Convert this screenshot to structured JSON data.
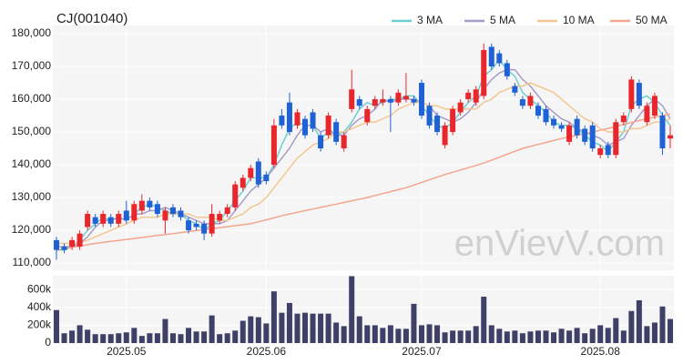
{
  "chart_data": {
    "type": "candlestick",
    "title": "CJ(001040)",
    "watermark": "enVievV.com",
    "categories": [
      null,
      null,
      null,
      null,
      null,
      null,
      null,
      null,
      null,
      "2025.05",
      null,
      null,
      null,
      null,
      null,
      null,
      null,
      null,
      null,
      null,
      null,
      null,
      null,
      null,
      null,
      null,
      null,
      "2025.06",
      null,
      null,
      null,
      null,
      null,
      null,
      null,
      null,
      null,
      null,
      null,
      null,
      null,
      null,
      null,
      null,
      null,
      null,
      null,
      "2025.07",
      null,
      null,
      null,
      null,
      null,
      null,
      null,
      null,
      null,
      null,
      null,
      null,
      null,
      null,
      null,
      null,
      null,
      null,
      null,
      null,
      null,
      null,
      "2025.08",
      null,
      null,
      null,
      null,
      null,
      null,
      null,
      null,
      null
    ],
    "open": [
      117000,
      115000,
      115000,
      115000,
      121000,
      124000,
      122000,
      124000,
      122000,
      126000,
      123000,
      126000,
      129000,
      128000,
      123000,
      127000,
      126000,
      123000,
      122000,
      122000,
      119000,
      123000,
      125000,
      127000,
      133000,
      136000,
      141000,
      137000,
      140000,
      155000,
      159000,
      152000,
      154000,
      156000,
      149000,
      149000,
      153000,
      145000,
      157000,
      160000,
      153000,
      158000,
      159000,
      160000,
      159000,
      160000,
      160000,
      165000,
      158000,
      155000,
      146000,
      150000,
      156000,
      160000,
      159000,
      161000,
      176000,
      174000,
      171000,
      164000,
      160000,
      158000,
      158000,
      157000,
      154000,
      152000,
      147000,
      154000,
      151000,
      152000,
      143000,
      146000,
      143000,
      153000,
      157000,
      165000,
      153000,
      155000,
      155000,
      148000
    ],
    "high": [
      118000,
      116000,
      118000,
      120000,
      126000,
      125000,
      126000,
      125000,
      126000,
      129000,
      129000,
      131000,
      130000,
      129000,
      127000,
      128000,
      127000,
      124000,
      123000,
      123000,
      128000,
      126000,
      128000,
      135000,
      137000,
      140000,
      142000,
      138000,
      154000,
      157000,
      162000,
      157000,
      155000,
      157000,
      150000,
      156000,
      154000,
      150000,
      169000,
      161000,
      158000,
      161000,
      163000,
      161000,
      163000,
      168000,
      161000,
      166000,
      159000,
      156000,
      153000,
      158000,
      160000,
      163000,
      164000,
      177000,
      177000,
      175000,
      172000,
      165000,
      161000,
      162000,
      159000,
      158000,
      155000,
      153000,
      153000,
      155000,
      152000,
      153000,
      146000,
      147000,
      154000,
      156000,
      167000,
      166000,
      159000,
      162000,
      156000,
      152000
    ],
    "low": [
      111000,
      113000,
      114000,
      114000,
      120000,
      121000,
      121000,
      121000,
      121000,
      122000,
      122000,
      125000,
      126000,
      124000,
      119000,
      124000,
      123000,
      119000,
      120000,
      117000,
      118000,
      122000,
      124000,
      126000,
      132000,
      135000,
      133000,
      134000,
      139000,
      151000,
      149000,
      151000,
      148000,
      150000,
      144000,
      148000,
      146000,
      144000,
      156000,
      157000,
      152000,
      157000,
      158000,
      150000,
      158000,
      159000,
      158000,
      154000,
      151000,
      149000,
      145000,
      149000,
      155000,
      159000,
      158000,
      160000,
      169000,
      170000,
      166000,
      161000,
      157000,
      157000,
      154000,
      152000,
      151000,
      150000,
      146000,
      148000,
      146000,
      144000,
      142000,
      142000,
      142000,
      152000,
      156000,
      157000,
      152000,
      154000,
      143000,
      145000
    ],
    "close": [
      114000,
      114000,
      117000,
      119000,
      125000,
      122000,
      125000,
      122000,
      125000,
      123000,
      128000,
      129000,
      127000,
      125000,
      126000,
      125000,
      124000,
      120000,
      121000,
      119000,
      125000,
      125000,
      127000,
      134000,
      136000,
      139000,
      134000,
      135000,
      152000,
      152000,
      150000,
      156000,
      149000,
      151000,
      145000,
      155000,
      147000,
      149000,
      163000,
      158000,
      157000,
      160000,
      160000,
      159000,
      162000,
      161000,
      159000,
      155000,
      152000,
      150000,
      152000,
      157000,
      159000,
      162000,
      163000,
      175000,
      170000,
      171000,
      167000,
      162000,
      158000,
      161000,
      155000,
      153000,
      152000,
      151000,
      152000,
      149000,
      147000,
      145000,
      145000,
      143000,
      153000,
      155000,
      166000,
      158000,
      158000,
      161000,
      145000,
      149000
    ],
    "up_color": "#e8262b",
    "down_color": "#1f62d6",
    "ylim": [
      107800,
      182500
    ],
    "yticks": [
      {
        "value": 110000,
        "label": "110,000"
      },
      {
        "value": 120000,
        "label": "120,000"
      },
      {
        "value": 130000,
        "label": "130,000"
      },
      {
        "value": 140000,
        "label": "140,000"
      },
      {
        "value": 150000,
        "label": "150,000"
      },
      {
        "value": 160000,
        "label": "160,000"
      },
      {
        "value": 170000,
        "label": "170,000"
      },
      {
        "value": 180000,
        "label": "180,000"
      }
    ],
    "grid": true,
    "legend": "top-right",
    "series": [
      {
        "name": "3 MA",
        "color": "#6ccfd0",
        "values": [
          114000,
          114000,
          115000,
          117000,
          120000,
          122000,
          124000,
          123000,
          124000,
          123000,
          125000,
          127000,
          128000,
          127000,
          126000,
          125000,
          125000,
          123000,
          122000,
          120000,
          122000,
          123000,
          126000,
          129000,
          132000,
          136000,
          136000,
          136000,
          140000,
          146000,
          151000,
          153000,
          152000,
          152000,
          148000,
          150000,
          149000,
          150000,
          153000,
          157000,
          159000,
          158000,
          159000,
          160000,
          160000,
          161000,
          161000,
          158000,
          155000,
          152000,
          151000,
          153000,
          156000,
          159000,
          161000,
          167000,
          169000,
          172000,
          169000,
          167000,
          162000,
          160000,
          158000,
          156000,
          153000,
          152000,
          152000,
          151000,
          149000,
          147000,
          146000,
          144000,
          147000,
          150000,
          158000,
          160000,
          161000,
          159000,
          155000,
          152000
        ]
      },
      {
        "name": "5 MA",
        "color": "#a89cc8",
        "values": [
          115000,
          115000,
          115000,
          116000,
          118000,
          121000,
          123000,
          123000,
          124000,
          123000,
          125000,
          125000,
          126000,
          126000,
          127000,
          126000,
          125000,
          124000,
          123000,
          122000,
          122000,
          122000,
          123000,
          126000,
          129000,
          132000,
          134000,
          136000,
          139000,
          142000,
          145000,
          149000,
          152000,
          152000,
          150000,
          151000,
          149000,
          149000,
          152000,
          154000,
          155000,
          157000,
          160000,
          159000,
          160000,
          160000,
          160000,
          159000,
          158000,
          155000,
          154000,
          153000,
          154000,
          156000,
          159000,
          163000,
          166000,
          168000,
          169000,
          169000,
          166000,
          164000,
          161000,
          158000,
          156000,
          154000,
          153000,
          151000,
          150000,
          149000,
          148000,
          146000,
          147000,
          148000,
          152000,
          155000,
          158000,
          160000,
          158000,
          154000
        ]
      },
      {
        "name": "10 MA",
        "color": "#f3c792",
        "values": [
          116000,
          116000,
          116000,
          116000,
          117000,
          118000,
          119000,
          120000,
          121000,
          122000,
          123000,
          124000,
          124000,
          124000,
          125000,
          125000,
          125000,
          125000,
          124000,
          124000,
          124000,
          123000,
          123000,
          124000,
          125000,
          127000,
          128000,
          130000,
          133000,
          136000,
          139000,
          142000,
          144000,
          146000,
          147000,
          148000,
          150000,
          150000,
          151000,
          152000,
          153000,
          153000,
          154000,
          155000,
          157000,
          158000,
          159000,
          159000,
          158000,
          158000,
          157000,
          157000,
          157000,
          157000,
          157000,
          159000,
          160000,
          162000,
          163000,
          164000,
          164000,
          165000,
          164000,
          163000,
          162000,
          160000,
          158000,
          156000,
          154000,
          153000,
          151000,
          150000,
          150000,
          150000,
          151000,
          151000,
          152000,
          153000,
          153000,
          154000
        ]
      },
      {
        "name": "50 MA",
        "color": "#f4a58f",
        "values": [
          114000,
          114400,
          114800,
          115200,
          115600,
          116000,
          116300,
          116600,
          116900,
          117200,
          117500,
          117800,
          118100,
          118400,
          118700,
          119000,
          119300,
          119600,
          119900,
          120200,
          120500,
          120800,
          121100,
          121400,
          121700,
          122000,
          122600,
          123200,
          123800,
          124400,
          125000,
          125500,
          126000,
          126500,
          127000,
          127500,
          128000,
          128500,
          129000,
          129500,
          130000,
          130600,
          131200,
          131800,
          132400,
          133000,
          133800,
          134600,
          135400,
          136200,
          137000,
          137700,
          138400,
          139100,
          139800,
          140500,
          141400,
          142300,
          143200,
          144100,
          145000,
          145600,
          146200,
          146800,
          147400,
          148000,
          148500,
          149000,
          149500,
          150000,
          150500,
          151100,
          151700,
          152300,
          152900,
          153500,
          154000,
          154500,
          155000,
          155500
        ]
      }
    ],
    "volume": {
      "color": "#3e4068",
      "values": [
        370000,
        110000,
        140000,
        200000,
        150000,
        100000,
        100000,
        100000,
        110000,
        120000,
        170000,
        80000,
        110000,
        110000,
        270000,
        110000,
        100000,
        170000,
        130000,
        130000,
        310000,
        100000,
        110000,
        140000,
        250000,
        300000,
        290000,
        220000,
        580000,
        340000,
        450000,
        330000,
        340000,
        330000,
        330000,
        330000,
        230000,
        190000,
        750000,
        300000,
        200000,
        200000,
        170000,
        200000,
        160000,
        160000,
        440000,
        200000,
        210000,
        200000,
        120000,
        140000,
        140000,
        140000,
        190000,
        520000,
        200000,
        160000,
        130000,
        140000,
        110000,
        130000,
        140000,
        140000,
        120000,
        160000,
        140000,
        170000,
        110000,
        160000,
        200000,
        170000,
        280000,
        140000,
        360000,
        480000,
        190000,
        230000,
        410000,
        270000
      ],
      "ylim": [
        0,
        755000
      ],
      "yticks": [
        0,
        {
          "value": 200000,
          "label": "200k"
        },
        {
          "value": 400000,
          "label": "400k"
        },
        {
          "value": 600000,
          "label": "600k"
        }
      ]
    }
  }
}
